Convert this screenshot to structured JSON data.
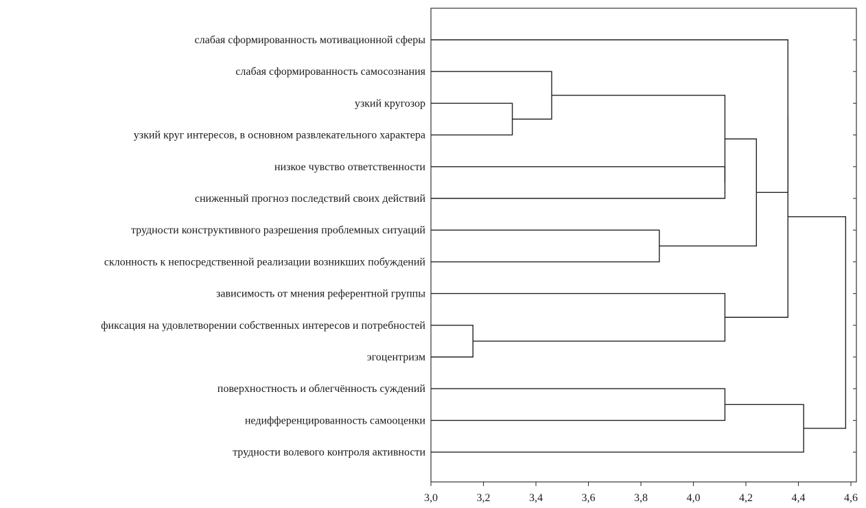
{
  "chart_data": {
    "type": "dendrogram",
    "orientation": "horizontal",
    "xlim": [
      3.0,
      4.6
    ],
    "x_ticks": [
      "3,0",
      "3,2",
      "3,4",
      "3,6",
      "3,8",
      "4,0",
      "4,2",
      "4,4",
      "4,6"
    ],
    "x_tick_values": [
      3.0,
      3.2,
      3.4,
      3.6,
      3.8,
      4.0,
      4.2,
      4.4,
      4.6
    ],
    "leaves": [
      "слабая сформированность мотивационной сферы",
      "слабая сформированность самосознания",
      "узкий кругозор",
      "узкий круг интересов, в основном развлекательного характера",
      "низкое чувство ответственности",
      "сниженный прогноз последствий своих действий",
      "трудности конструктивного разрешения проблемных ситуаций",
      "склонность к непосредственной реализации возникших побуждений",
      "зависимость от мнения референтной группы",
      "фиксация на удовлетворении собственных интересов и потребностей",
      "эгоцентризм",
      "поверхностность и облегчённость суждений",
      "недифференцированность самооценки",
      "трудности волевого контроля активности"
    ],
    "merges": [
      {
        "a": 9,
        "b": 10,
        "height": 3.16
      },
      {
        "a": 2,
        "b": 3,
        "height": 3.31
      },
      {
        "a": 1,
        "b": 15,
        "height": 3.46
      },
      {
        "a": 6,
        "b": 7,
        "height": 3.87
      },
      {
        "a": 4,
        "b": 5,
        "height": 4.12
      },
      {
        "a": 16,
        "b": 18,
        "height": 4.12
      },
      {
        "a": 8,
        "b": 14,
        "height": 4.12
      },
      {
        "a": 11,
        "b": 12,
        "height": 4.12
      },
      {
        "a": 19,
        "b": 17,
        "height": 4.24
      },
      {
        "a": 0,
        "b": 22,
        "height": 4.36
      },
      {
        "a": 23,
        "b": 20,
        "height": 4.36
      },
      {
        "a": 21,
        "b": 13,
        "height": 4.42
      },
      {
        "a": 24,
        "b": 25,
        "height": 4.58
      }
    ]
  }
}
